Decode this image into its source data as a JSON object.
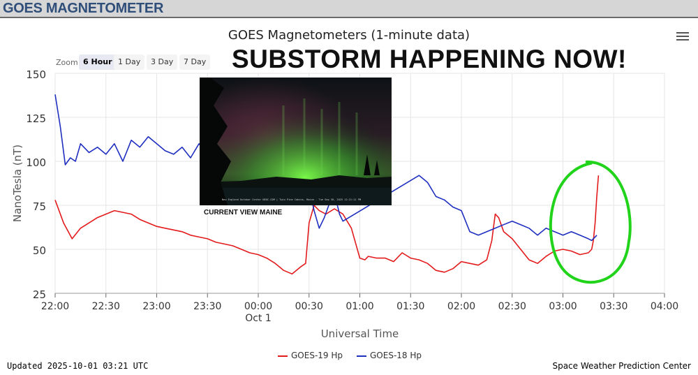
{
  "header": {
    "app_title": "GOES MAGNETOMETER"
  },
  "chart_title": "GOES Magnetometers (1-minute data)",
  "banner": "SUBSTORM HAPPENING NOW!",
  "photo": {
    "caption": "CURRENT VIEW MAINE",
    "overlay_text": "New England Outdoor Center NEOC.COM | Twin Pine Cabins, Maine - Tue Sep 30, 2025 11:21:11 PM"
  },
  "zoom": {
    "label": "Zoom",
    "buttons": [
      {
        "label": "6 Hour",
        "active": true
      },
      {
        "label": "1 Day",
        "active": false
      },
      {
        "label": "3 Day",
        "active": false
      },
      {
        "label": "7 Day",
        "active": false
      }
    ]
  },
  "footer": {
    "updated": "Updated 2025-10-01 03:21 UTC",
    "source": "Space Weather Prediction Center"
  },
  "colors": {
    "goes19": "#e31a1c",
    "goes18": "#1f2fc0",
    "annotation": "#21d41b"
  },
  "chart_data": {
    "type": "line",
    "title": "GOES Magnetometers (1-minute data)",
    "xlabel": "Universal Time",
    "ylabel": "NanoTesla (nT)",
    "ylim": [
      25,
      150
    ],
    "yticks": [
      25,
      50,
      75,
      100,
      125,
      150
    ],
    "xlim": [
      "22:00",
      "04:00"
    ],
    "xticks": [
      "22:00",
      "22:30",
      "23:00",
      "23:30",
      "00:00",
      "00:30",
      "01:00",
      "01:30",
      "02:00",
      "02:30",
      "03:00",
      "03:30",
      "04:00"
    ],
    "xtick_sublabel": {
      "tick": "00:00",
      "text": "Oct 1"
    },
    "grid": true,
    "legend_position": "bottom-center",
    "series": [
      {
        "name": "GOES-19 Hp",
        "color": "#e31a1c",
        "x": [
          "22:00",
          "22:05",
          "22:10",
          "22:15",
          "22:20",
          "22:25",
          "22:30",
          "22:35",
          "22:40",
          "22:45",
          "22:50",
          "22:55",
          "23:00",
          "23:05",
          "23:10",
          "23:15",
          "23:20",
          "23:25",
          "23:30",
          "23:35",
          "23:40",
          "23:45",
          "23:50",
          "23:55",
          "00:00",
          "00:05",
          "00:10",
          "00:15",
          "00:20",
          "00:25",
          "00:28",
          "00:30",
          "00:33",
          "00:36",
          "00:40",
          "00:45",
          "00:50",
          "00:55",
          "01:00",
          "01:03",
          "01:05",
          "01:10",
          "01:15",
          "01:20",
          "01:25",
          "01:30",
          "01:35",
          "01:40",
          "01:45",
          "01:50",
          "01:55",
          "02:00",
          "02:05",
          "02:10",
          "02:15",
          "02:18",
          "02:20",
          "02:22",
          "02:25",
          "02:30",
          "02:35",
          "02:40",
          "02:45",
          "02:50",
          "02:55",
          "03:00",
          "03:05",
          "03:10",
          "03:15",
          "03:17",
          "03:18",
          "03:19",
          "03:20",
          "03:21"
        ],
        "values": [
          78,
          65,
          56,
          62,
          65,
          68,
          70,
          72,
          71,
          70,
          67,
          65,
          63,
          62,
          61,
          60,
          58,
          57,
          56,
          54,
          53,
          52,
          50,
          48,
          47,
          45,
          42,
          38,
          36,
          40,
          42,
          65,
          75,
          72,
          70,
          73,
          70,
          62,
          45,
          44,
          46,
          45,
          45,
          43,
          48,
          45,
          44,
          42,
          38,
          37,
          39,
          43,
          42,
          41,
          44,
          55,
          70,
          68,
          60,
          56,
          50,
          44,
          42,
          46,
          49,
          50,
          49,
          47,
          48,
          50,
          55,
          65,
          80,
          92
        ]
      },
      {
        "name": "GOES-18 Hp",
        "color": "#1f2fc0",
        "x": [
          "22:00",
          "22:03",
          "22:06",
          "22:09",
          "22:12",
          "22:15",
          "22:20",
          "22:25",
          "22:30",
          "22:35",
          "22:40",
          "22:45",
          "22:50",
          "22:55",
          "23:00",
          "23:05",
          "23:10",
          "23:15",
          "23:20",
          "23:25",
          "23:30",
          "23:35",
          "23:40",
          "23:45",
          "23:50",
          "23:55",
          "00:00",
          "00:05",
          "00:10",
          "00:15",
          "00:20",
          "00:25",
          "00:30",
          "00:33",
          "00:36",
          "00:39",
          "00:42",
          "00:45",
          "00:48",
          "00:50",
          "01:35",
          "01:40",
          "01:45",
          "01:50",
          "01:55",
          "02:00",
          "02:05",
          "02:10",
          "02:15",
          "02:20",
          "02:25",
          "02:30",
          "02:35",
          "02:40",
          "02:45",
          "02:50",
          "02:55",
          "03:00",
          "03:05",
          "03:10",
          "03:15",
          "03:17",
          "03:18",
          "03:19",
          "03:20"
        ],
        "values": [
          138,
          120,
          98,
          102,
          100,
          110,
          105,
          108,
          104,
          110,
          100,
          112,
          108,
          114,
          110,
          106,
          104,
          108,
          102,
          110,
          104,
          106,
          108,
          104,
          107,
          103,
          105,
          102,
          100,
          98,
          96,
          90,
          85,
          72,
          62,
          68,
          76,
          82,
          70,
          66,
          92,
          88,
          80,
          78,
          74,
          72,
          60,
          58,
          60,
          62,
          64,
          66,
          64,
          62,
          58,
          62,
          60,
          58,
          60,
          58,
          56,
          55,
          56,
          57,
          58
        ]
      }
    ]
  }
}
